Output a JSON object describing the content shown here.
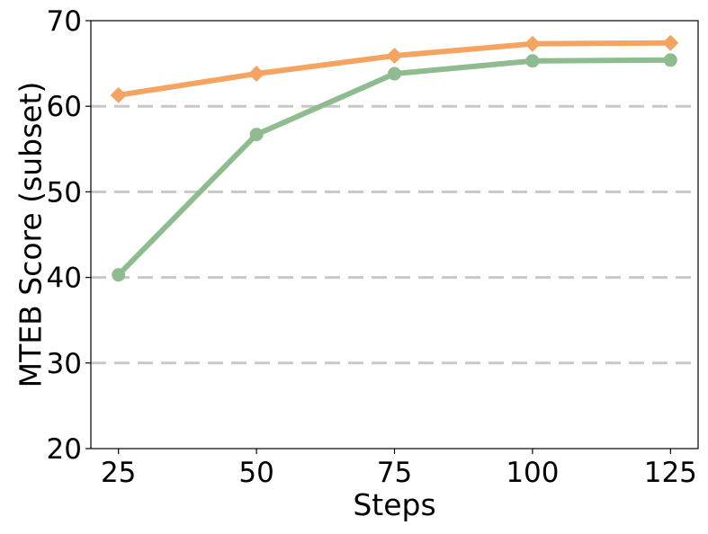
{
  "chart_data": {
    "type": "line",
    "title": "",
    "xlabel": "Steps",
    "ylabel": "MTEB Score (subset)",
    "x": [
      25,
      50,
      75,
      100,
      125
    ],
    "xticks": [
      "25",
      "50",
      "75",
      "100",
      "125"
    ],
    "yticks": [
      "20",
      "30",
      "40",
      "50",
      "60",
      "70"
    ],
    "xlim": [
      20,
      130
    ],
    "ylim": [
      20,
      70
    ],
    "grid": "horizontal-dashed",
    "series": [
      {
        "values": [
          61.3,
          63.8,
          65.9,
          67.3,
          67.4
        ],
        "color": "#F4A460",
        "marker": "diamond"
      },
      {
        "values": [
          40.3,
          56.7,
          63.8,
          65.3,
          65.4
        ],
        "color": "#8FBC8F",
        "marker": "circle"
      }
    ]
  }
}
